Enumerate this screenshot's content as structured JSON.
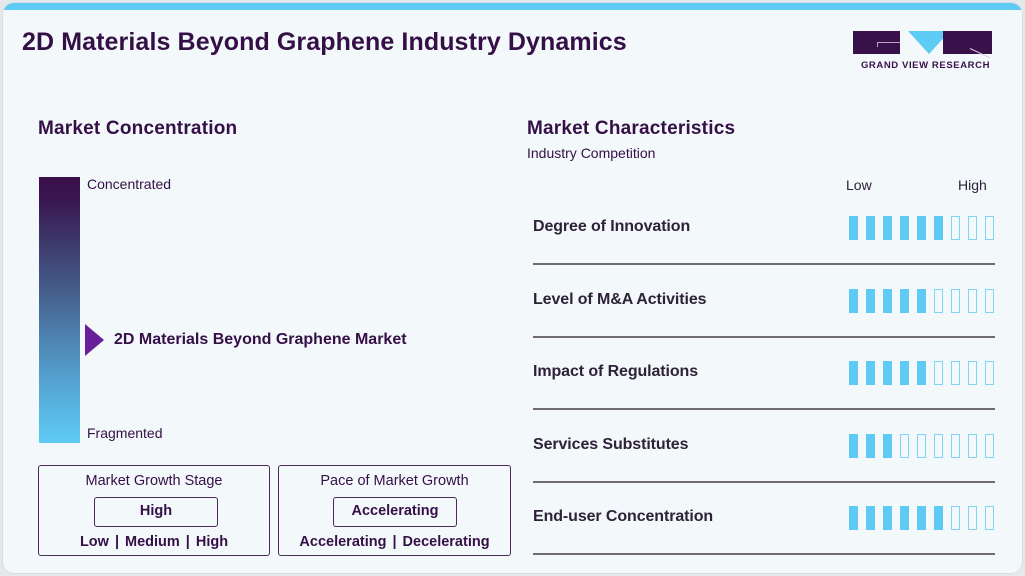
{
  "header": {
    "title": "2D Materials Beyond Graphene Industry Dynamics",
    "logo_text": "GRAND VIEW RESEARCH"
  },
  "colors": {
    "accent_blue": "#5ecbf4",
    "dark_purple": "#351046",
    "marker_purple": "#6a1f9a"
  },
  "market_concentration": {
    "title": "Market Concentration",
    "top_label": "Concentrated",
    "bottom_label": "Fragmented",
    "marker_label": "2D Materials Beyond Graphene Market"
  },
  "growth_stage": {
    "title": "Market Growth Stage",
    "value": "High",
    "options": [
      "Low",
      "Medium",
      "High"
    ],
    "separator": "|"
  },
  "growth_pace": {
    "title": "Pace of Market Growth",
    "value": "Accelerating",
    "options": [
      "Accelerating",
      "Decelerating"
    ],
    "separator": "|"
  },
  "market_characteristics": {
    "title": "Market Characteristics",
    "subtitle": "Industry Competition",
    "scale_low": "Low",
    "scale_high": "High",
    "max_segments": 9,
    "rows": [
      {
        "label": "Degree of Innovation",
        "filled": 6
      },
      {
        "label": "Level of M&A Activities",
        "filled": 5
      },
      {
        "label": "Impact of Regulations",
        "filled": 5
      },
      {
        "label": "Services Substitutes",
        "filled": 3
      },
      {
        "label": "End-user Concentration",
        "filled": 6
      }
    ]
  }
}
